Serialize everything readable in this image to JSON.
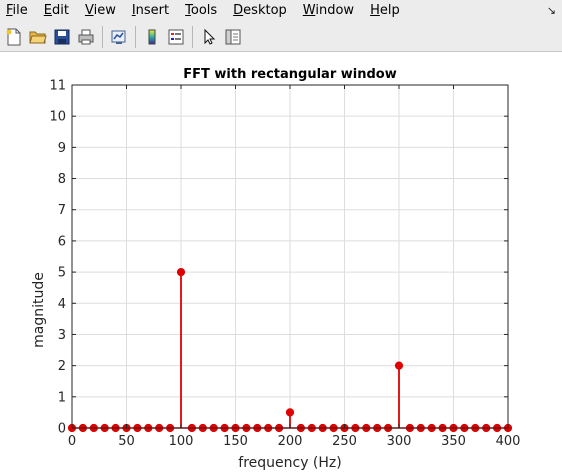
{
  "menu": {
    "items": [
      {
        "label": "File",
        "mnemonic": "F",
        "rest": "ile"
      },
      {
        "label": "Edit",
        "mnemonic": "E",
        "rest": "dit"
      },
      {
        "label": "View",
        "mnemonic": "V",
        "rest": "iew"
      },
      {
        "label": "Insert",
        "mnemonic": "I",
        "rest": "nsert"
      },
      {
        "label": "Tools",
        "mnemonic": "T",
        "rest": "ools"
      },
      {
        "label": "Desktop",
        "mnemonic": "D",
        "rest": "esktop"
      },
      {
        "label": "Window",
        "mnemonic": "W",
        "rest": "indow"
      },
      {
        "label": "Help",
        "mnemonic": "H",
        "rest": "elp"
      }
    ],
    "dock_icon": "dock-arrow-icon"
  },
  "toolbar": {
    "buttons": [
      {
        "name": "new-figure-button",
        "icon": "new-file-icon"
      },
      {
        "name": "open-file-button",
        "icon": "folder-open-icon"
      },
      {
        "name": "save-button",
        "icon": "save-icon"
      },
      {
        "name": "print-button",
        "icon": "printer-icon"
      },
      {
        "name": "link-plot-button",
        "icon": "link-plot-icon"
      },
      {
        "name": "insert-colorbar-button",
        "icon": "colorbar-icon"
      },
      {
        "name": "insert-legend-button",
        "icon": "legend-icon"
      },
      {
        "name": "edit-plot-button",
        "icon": "pointer-arrow-icon"
      },
      {
        "name": "property-inspector-button",
        "icon": "property-panel-icon"
      }
    ]
  },
  "chart_data": {
    "type": "stem",
    "title": "FFT with rectangular window",
    "xlabel": "frequency (Hz)",
    "ylabel": "magnitude",
    "xlim": [
      0,
      400
    ],
    "ylim": [
      0,
      11
    ],
    "xticks": [
      0,
      50,
      100,
      150,
      200,
      250,
      300,
      350,
      400
    ],
    "yticks": [
      0,
      1,
      2,
      3,
      4,
      5,
      6,
      7,
      8,
      9,
      10,
      11
    ],
    "grid": true,
    "color": "#e00000",
    "x": [
      0,
      10,
      20,
      30,
      40,
      50,
      60,
      70,
      80,
      90,
      100,
      110,
      120,
      130,
      140,
      150,
      160,
      170,
      180,
      190,
      200,
      210,
      220,
      230,
      240,
      250,
      260,
      270,
      280,
      290,
      300,
      310,
      320,
      330,
      340,
      350,
      360,
      370,
      380,
      390,
      400
    ],
    "y": [
      0,
      0,
      0,
      0,
      0,
      0,
      0,
      0,
      0,
      0,
      5,
      0,
      0,
      0,
      0,
      0,
      0,
      0,
      0,
      0,
      0.5,
      0,
      0,
      0,
      0,
      0,
      0,
      0,
      0,
      0,
      2,
      0,
      0,
      0,
      0,
      0,
      0,
      0,
      0,
      0,
      0
    ]
  }
}
